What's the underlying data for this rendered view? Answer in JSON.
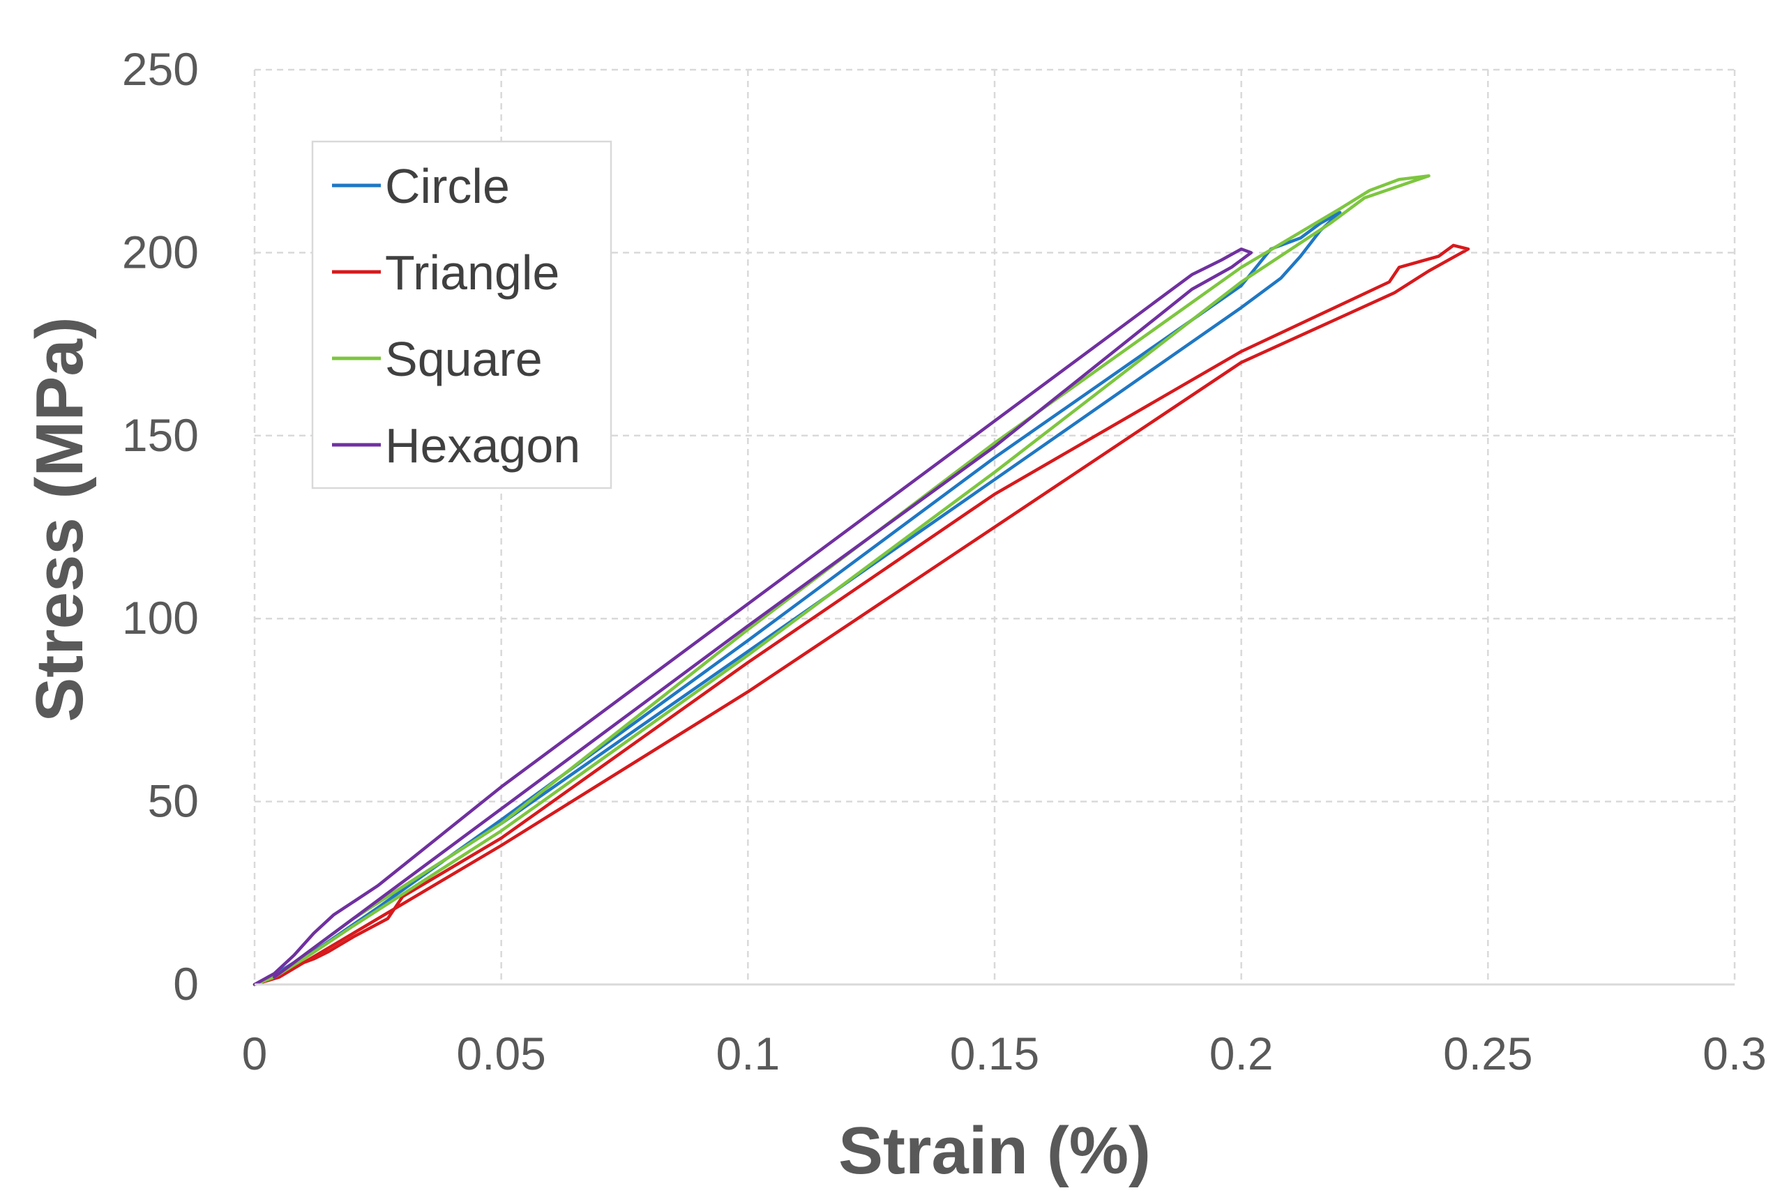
{
  "chart_data": {
    "type": "line",
    "title": "",
    "xlabel": "Strain (%)",
    "ylabel": "Stress (MPa)",
    "xlim": [
      0,
      0.3
    ],
    "ylim": [
      0,
      250
    ],
    "x_ticks": [
      "0",
      "0.05",
      "0.1",
      "0.15",
      "0.2",
      "0.25",
      "0.3"
    ],
    "y_ticks": [
      "0",
      "50",
      "100",
      "150",
      "200",
      "250"
    ],
    "grid": true,
    "legend_position": "top-left",
    "series": [
      {
        "name": "Circle",
        "color": "#1f77c4",
        "x": [
          0,
          0.005,
          0.012,
          0.025,
          0.05,
          0.1,
          0.15,
          0.2,
          0.206,
          0.212,
          0.216,
          0.22,
          0.216,
          0.212,
          0.208,
          0.2,
          0.15,
          0.1,
          0.05,
          0.02,
          0.008,
          0.002
        ],
        "y": [
          0,
          3,
          9,
          21,
          45,
          94,
          144,
          191,
          201,
          204,
          208,
          211,
          206,
          199,
          193,
          185,
          138,
          91,
          44,
          18,
          6,
          1
        ]
      },
      {
        "name": "Triangle",
        "color": "#d7191c",
        "x": [
          0,
          0.005,
          0.008,
          0.012,
          0.015,
          0.02,
          0.027,
          0.03,
          0.05,
          0.1,
          0.15,
          0.2,
          0.23,
          0.232,
          0.24,
          0.243,
          0.246,
          0.238,
          0.231,
          0.2,
          0.15,
          0.1,
          0.05,
          0.02,
          0.01,
          0.005,
          0.002
        ],
        "y": [
          0,
          2,
          5,
          7,
          9,
          13,
          18,
          24,
          40,
          88,
          134,
          173,
          192,
          196,
          199,
          202,
          201,
          195,
          189,
          170,
          125,
          80,
          38,
          14,
          6,
          2,
          1
        ],
        "extra": "loop"
      },
      {
        "name": "Square",
        "color": "#7dc63f",
        "x": [
          0,
          0.004,
          0.008,
          0.012,
          0.02,
          0.05,
          0.1,
          0.15,
          0.2,
          0.22,
          0.226,
          0.232,
          0.238,
          0.225,
          0.218,
          0.2,
          0.15,
          0.1,
          0.05,
          0.02,
          0.01,
          0.004
        ],
        "y": [
          0,
          2,
          6,
          10,
          18,
          44,
          97,
          148,
          196,
          212,
          217,
          220,
          221,
          215,
          208,
          192,
          140,
          90,
          42,
          16,
          7,
          2
        ]
      },
      {
        "name": "Hexagon",
        "color": "#7030a0",
        "x": [
          0,
          0.004,
          0.008,
          0.012,
          0.016,
          0.025,
          0.05,
          0.1,
          0.15,
          0.19,
          0.196,
          0.2,
          0.202,
          0.198,
          0.19,
          0.15,
          0.1,
          0.05,
          0.02,
          0.01,
          0.004
        ],
        "y": [
          0,
          3,
          8,
          14,
          19,
          27,
          54,
          104,
          154,
          194,
          198,
          201,
          200,
          196,
          190,
          147,
          98,
          48,
          18,
          8,
          2
        ]
      }
    ]
  }
}
